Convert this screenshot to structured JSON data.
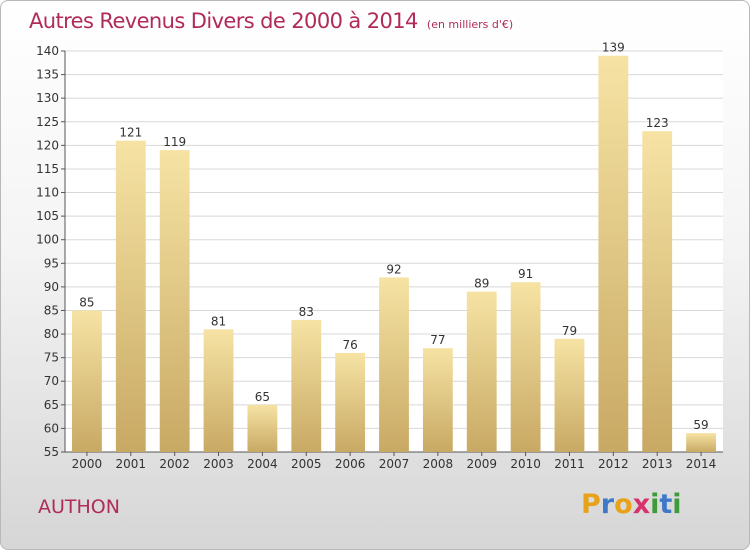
{
  "header": {
    "title": "Autres Revenus Divers de 2000 à 2014",
    "subtitle": "(en milliers d'€)"
  },
  "footer": {
    "town": "AUTHON",
    "logo_letters": [
      "P",
      "r",
      "o",
      "x",
      "i",
      "t",
      "i"
    ],
    "logo_colors": [
      "#e8a21a",
      "#3f78c8",
      "#e8a21a",
      "#d6336c",
      "#3f9a3a",
      "#3f78c8",
      "#3f9a3a"
    ]
  },
  "colors": {
    "title": "#b02a5a",
    "bar_light": "#f6e3a4",
    "bar_dark": "#c8a964",
    "grid": "#d8d8d8",
    "axis_text": "#333333"
  },
  "chart_data": {
    "type": "bar",
    "title": "Autres Revenus Divers de 2000 à 2014",
    "subtitle": "(en milliers d'€)",
    "categories": [
      "2000",
      "2001",
      "2002",
      "2003",
      "2004",
      "2005",
      "2006",
      "2007",
      "2008",
      "2009",
      "2010",
      "2011",
      "2012",
      "2013",
      "2014"
    ],
    "values": [
      85,
      121,
      119,
      81,
      65,
      83,
      76,
      92,
      77,
      89,
      91,
      79,
      139,
      123,
      59
    ],
    "ylim": [
      55,
      140
    ],
    "yticks": [
      55,
      60,
      65,
      70,
      75,
      80,
      85,
      90,
      95,
      100,
      105,
      110,
      115,
      120,
      125,
      130,
      135,
      140
    ],
    "grid": true,
    "data_labels": true
  }
}
